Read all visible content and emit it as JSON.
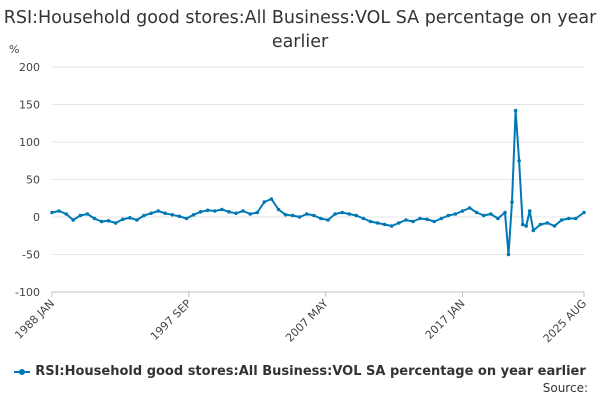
{
  "title": "RSI:Household good stores:All Business:VOL SA percentage on year earlier",
  "source_label": "Source:",
  "chart_data": {
    "type": "line",
    "title": "RSI:Household good stores:All Business:VOL SA percentage on year earlier",
    "ylabel": "%",
    "xlabel": "",
    "ylim": [
      -100,
      200
    ],
    "y_ticks": [
      "200",
      "150",
      "100",
      "50",
      "0",
      "-50",
      "-100"
    ],
    "x_tick_labels": [
      "1988 JAN",
      "1997 SEP",
      "2007 MAY",
      "2017 JAN",
      "2025 AUG"
    ],
    "grid": "horizontal",
    "legend_position": "bottom",
    "series": [
      {
        "name": "RSI:Household good stores:All Business:VOL SA percentage on year earlier",
        "color": "#0078b4",
        "x": [
          "1988 JAN",
          "1988 JUL",
          "1989 JAN",
          "1989 JUL",
          "1990 JAN",
          "1990 JUL",
          "1991 JAN",
          "1991 JUL",
          "1992 JAN",
          "1992 JUL",
          "1993 JAN",
          "1993 JUL",
          "1994 JAN",
          "1994 JUL",
          "1995 JAN",
          "1995 JUL",
          "1996 JAN",
          "1996 JUL",
          "1997 JAN",
          "1997 JUL",
          "1998 JAN",
          "1998 JUL",
          "1999 JAN",
          "1999 JUL",
          "2000 JAN",
          "2000 JUL",
          "2001 JAN",
          "2001 JUL",
          "2002 JAN",
          "2002 JUL",
          "2003 JAN",
          "2003 JUL",
          "2004 JAN",
          "2004 JUL",
          "2005 JAN",
          "2005 JUL",
          "2006 JAN",
          "2006 JUL",
          "2007 JAN",
          "2007 JUL",
          "2008 JAN",
          "2008 JUL",
          "2009 JAN",
          "2009 JUL",
          "2010 JAN",
          "2010 JUL",
          "2011 JAN",
          "2011 JUL",
          "2012 JAN",
          "2012 JUL",
          "2013 JAN",
          "2013 JUL",
          "2014 JAN",
          "2014 JUL",
          "2015 JAN",
          "2015 JUL",
          "2016 JAN",
          "2016 JUL",
          "2017 JAN",
          "2017 JUL",
          "2018 JAN",
          "2018 JUL",
          "2019 JAN",
          "2019 JUL",
          "2020 JAN",
          "2020 APR",
          "2020 JUL",
          "2020 OCT",
          "2021 JAN",
          "2021 APR",
          "2021 JUL",
          "2021 OCT",
          "2022 JAN",
          "2022 JUL",
          "2023 JAN",
          "2023 JUL",
          "2024 JAN",
          "2024 JUL",
          "2025 JAN",
          "2025 AUG"
        ],
        "values": [
          6,
          8,
          4,
          -4,
          2,
          4,
          -2,
          -6,
          -5,
          -8,
          -3,
          -1,
          -4,
          2,
          5,
          8,
          5,
          3,
          1,
          -2,
          3,
          7,
          9,
          8,
          10,
          7,
          5,
          8,
          4,
          6,
          20,
          24,
          10,
          3,
          2,
          0,
          4,
          2,
          -2,
          -4,
          4,
          6,
          4,
          2,
          -2,
          -6,
          -8,
          -10,
          -12,
          -8,
          -4,
          -6,
          -2,
          -3,
          -6,
          -2,
          2,
          4,
          8,
          12,
          6,
          2,
          4,
          -2,
          6,
          -50,
          20,
          142,
          75,
          -10,
          -12,
          8,
          -18,
          -10,
          -8,
          -12,
          -4,
          -2,
          -2,
          6
        ]
      }
    ]
  }
}
